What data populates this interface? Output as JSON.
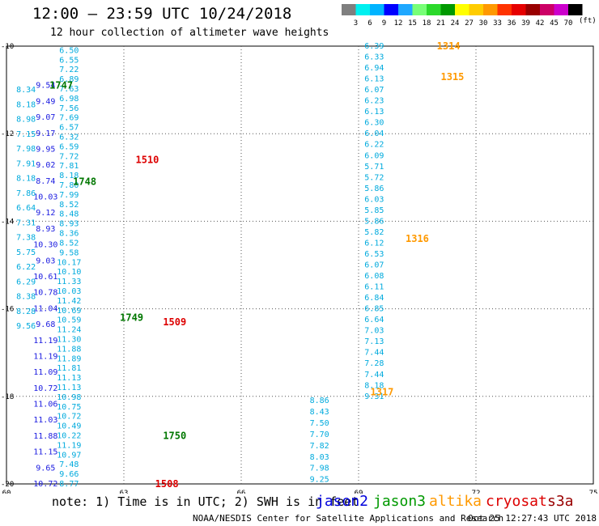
{
  "header": {
    "title": "12:00 – 23:59 UTC 10/24/2018",
    "subtitle": "12 hour collection of altimeter wave heights"
  },
  "colorbar": {
    "colors": [
      "#7f7f7f",
      "#00f0f0",
      "#00b4ff",
      "#0000ff",
      "#1fa8ff",
      "#77ff77",
      "#2bd92b",
      "#009900",
      "#ffff00",
      "#ffcc00",
      "#ff9900",
      "#ff3300",
      "#e60000",
      "#990000",
      "#cc0066",
      "#cc00cc",
      "#000000"
    ],
    "labels": [
      "3",
      "6",
      "9",
      "12",
      "15",
      "18",
      "21",
      "24",
      "27",
      "30",
      "33",
      "36",
      "39",
      "42",
      "45",
      "70"
    ],
    "unit": "(ft)"
  },
  "axes": {
    "x_ticks": [
      "60",
      "63",
      "66",
      "69",
      "72",
      "75"
    ],
    "y_ticks": [
      "-10",
      "-12",
      "-14",
      "-16",
      "-18",
      "-20"
    ],
    "xlim": [
      60,
      75
    ],
    "ylim": [
      -20,
      -10
    ]
  },
  "tracks": [
    {
      "color": "#00aadd",
      "x": 61.6,
      "y0": -10.1,
      "y1": -20,
      "values": [
        "6.50",
        "6.55",
        "7.22",
        "6.89",
        "7.63",
        "6.98",
        "7.56",
        "7.69",
        "6.57",
        "6.32",
        "6.59",
        "7.72",
        "7.81",
        "8.18",
        "7.80",
        "7.99",
        "8.52",
        "8.48",
        "8.93",
        "8.36",
        "8.52",
        "9.58",
        "10.17",
        "10.10",
        "11.33",
        "10.03",
        "11.42",
        "10.69",
        "10.59",
        "11.24",
        "11.30",
        "11.88",
        "11.89",
        "11.81",
        "11.13",
        "11.13",
        "10.98",
        "10.75",
        "10.72",
        "10.49",
        "10.22",
        "11.19",
        "10.97",
        "7.48",
        "9.66",
        "8.77"
      ]
    },
    {
      "color": "#1a1ae0",
      "x": 61.0,
      "y0": -10.9,
      "y1": -20,
      "values": [
        "9.54",
        "9.49",
        "9.07",
        "9.17",
        "9.95",
        "9.02",
        "8.74",
        "10.03",
        "9.12",
        "8.93",
        "10.30",
        "9.03",
        "10.61",
        "10.78",
        "11.04",
        "9.68",
        "11.19",
        "11.19",
        "11.09",
        "10.72",
        "11.06",
        "11.03",
        "11.88",
        "11.15",
        "9.65",
        "10.72"
      ]
    },
    {
      "color": "#00aadd",
      "x": 60.5,
      "y0": -11.0,
      "y1": -16.4,
      "values": [
        "8.34",
        "8.18",
        "8.98",
        "7.15",
        "7.98",
        "7.91",
        "8.18",
        "7.86",
        "6.64",
        "7.31",
        "7.38",
        "5.75",
        "6.22",
        "6.29",
        "8.38",
        "8.28",
        "9.56"
      ]
    },
    {
      "color": "#00aadd",
      "x": 69.4,
      "y0": -10.0,
      "y1": -18.0,
      "values": [
        "6.39",
        "6.33",
        "6.94",
        "6.13",
        "6.07",
        "6.23",
        "6.13",
        "6.30",
        "6.04",
        "6.22",
        "6.09",
        "5.71",
        "5.72",
        "5.86",
        "6.03",
        "5.85",
        "5.86",
        "5.82",
        "6.12",
        "6.53",
        "6.07",
        "6.08",
        "6.11",
        "6.84",
        "6.85",
        "6.64",
        "7.03",
        "7.13",
        "7.44",
        "7.28",
        "7.44",
        "8.18",
        "9.31"
      ]
    },
    {
      "color": "#00aadd",
      "x": 68.0,
      "y0": -18.1,
      "y1": -19.9,
      "values": [
        "8.86",
        "8.43",
        "7.50",
        "7.70",
        "7.82",
        "8.03",
        "7.98",
        "9.25"
      ]
    }
  ],
  "time_labels": [
    {
      "text": "1747",
      "color": "#007700",
      "x": 61.1,
      "y": -10.9
    },
    {
      "text": "1748",
      "color": "#007700",
      "x": 61.7,
      "y": -13.1
    },
    {
      "text": "1749",
      "color": "#007700",
      "x": 62.9,
      "y": -16.2
    },
    {
      "text": "1750",
      "color": "#007700",
      "x": 64.0,
      "y": -18.9
    },
    {
      "text": "1510",
      "color": "#dd0000",
      "x": 63.3,
      "y": -12.6
    },
    {
      "text": "1509",
      "color": "#dd0000",
      "x": 64.0,
      "y": -16.3
    },
    {
      "text": "1508",
      "color": "#dd0000",
      "x": 63.8,
      "y": -20.0
    },
    {
      "text": "1314",
      "color": "#ff9900",
      "x": 71.0,
      "y": -10.0
    },
    {
      "text": "1315",
      "color": "#ff9900",
      "x": 71.1,
      "y": -10.7
    },
    {
      "text": "1316",
      "color": "#ff9900",
      "x": 70.2,
      "y": -14.4
    },
    {
      "text": "1317",
      "color": "#ff9900",
      "x": 69.3,
      "y": -17.9
    }
  ],
  "footer": {
    "note": "note: 1) Time is in UTC; 2) SWH is in feet",
    "satellites": [
      {
        "name": "jason2",
        "color": "#0000dd"
      },
      {
        "name": "jason3",
        "color": "#009900"
      },
      {
        "name": "altika",
        "color": "#ff9900"
      },
      {
        "name": "cryosat",
        "color": "#dd0000"
      },
      {
        "name": "s3a",
        "color": "#990000"
      }
    ],
    "credit": "NOAA/NESDIS Center for Satellite Applications and Research",
    "timestamp": "Oct 25 12:27:43 UTC 2018"
  }
}
